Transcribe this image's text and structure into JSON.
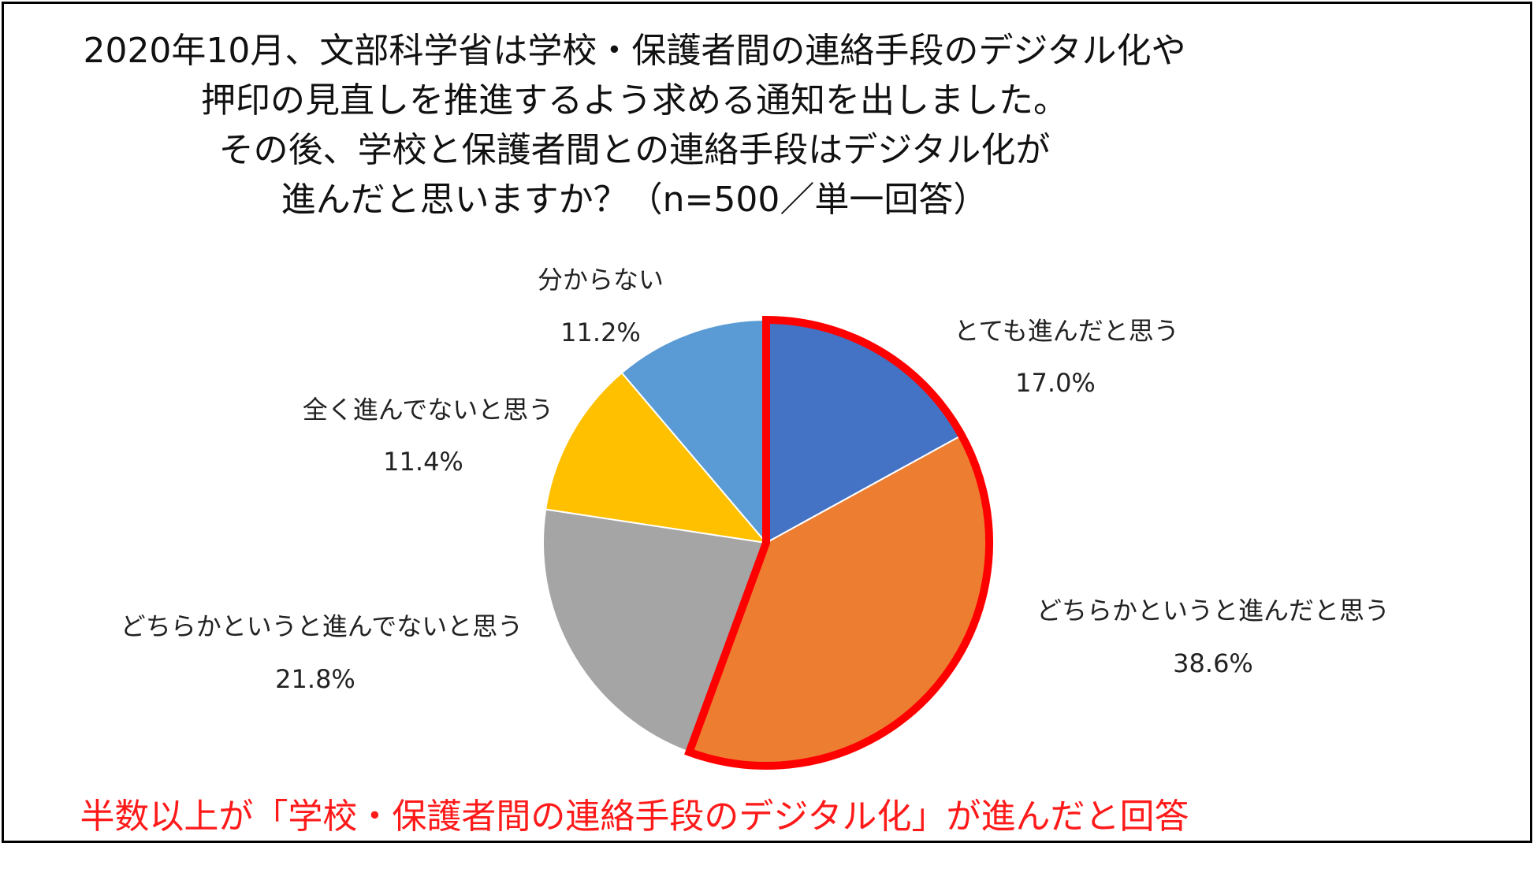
{
  "title_lines": [
    "2020年10月、文部科学省は学校・保護者間の連絡手段のデジタル化や",
    "押印の見直しを推進するよう求める通知を出しました。",
    "その後、学校と保護者間との連絡手段はデジタル化が",
    "進んだと思いますか？（n=500／単一回答）"
  ],
  "chart_data": {
    "type": "pie",
    "categories": [
      "とても進んだと思う",
      "どちらかというと進んだと思う",
      "どちらかというと進んでないと思う",
      "全く進んでないと思う",
      "分からない"
    ],
    "values": [
      17.0,
      38.6,
      21.8,
      11.4,
      11.2
    ],
    "value_labels": [
      "17.0%",
      "38.6%",
      "21.8%",
      "11.4%",
      "11.2%"
    ],
    "colors": [
      "#4472c4",
      "#ed7d31",
      "#a5a5a5",
      "#ffc000",
      "#5b9bd5"
    ],
    "highlight": {
      "categories": [
        "とても進んだと思う",
        "どちらかというと進んだと思う"
      ],
      "outline_color": "#ff0000"
    },
    "start_angle": "12 o'clock, clockwise"
  },
  "conclusion": "半数以上が「学校・保護者間の連絡手段のデジタル化」が進んだと回答"
}
